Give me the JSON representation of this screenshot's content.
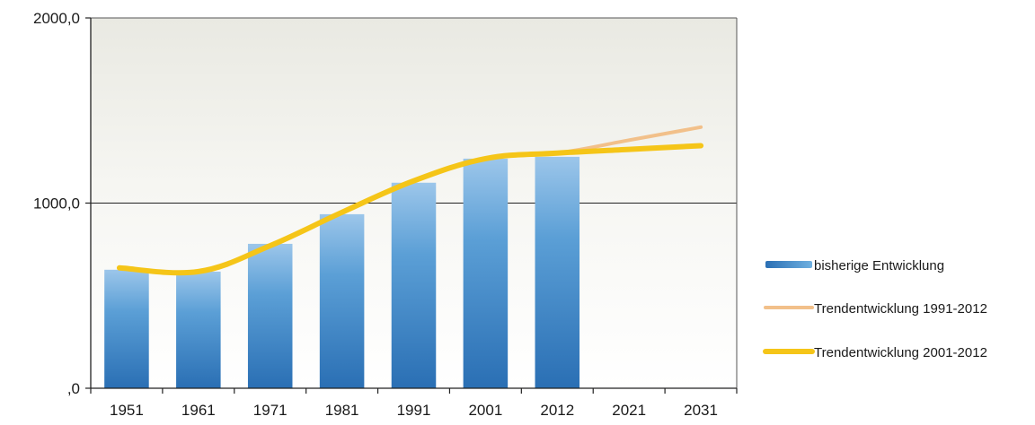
{
  "chart_data": {
    "type": "bar",
    "title": "",
    "xlabel": "",
    "ylabel": "",
    "categories": [
      "1951",
      "1961",
      "1971",
      "1981",
      "1991",
      "2001",
      "2012",
      "2021",
      "2031"
    ],
    "ylim": [
      0,
      2000
    ],
    "y_ticks": [
      {
        "value": 0,
        "label": ",0"
      },
      {
        "value": 1000,
        "label": "1000,0"
      },
      {
        "value": 2000,
        "label": "2000,0"
      }
    ],
    "gridlines": [
      1000
    ],
    "legend_position": "right",
    "series": [
      {
        "name": "bisherige Entwicklung",
        "type": "bar",
        "color": "#4a90c8",
        "values": [
          640,
          630,
          780,
          940,
          1110,
          1240,
          1250,
          null,
          null
        ]
      },
      {
        "name": "Trendentwicklung 1991-2012",
        "type": "line",
        "color": "#f2c08a",
        "values": [
          650,
          630,
          770,
          950,
          1120,
          1240,
          1270,
          1340,
          1410
        ]
      },
      {
        "name": "Trendentwicklung 2001-2012",
        "type": "line",
        "color": "#f5c518",
        "values": [
          650,
          630,
          770,
          950,
          1120,
          1240,
          1270,
          1290,
          1310
        ]
      }
    ]
  }
}
